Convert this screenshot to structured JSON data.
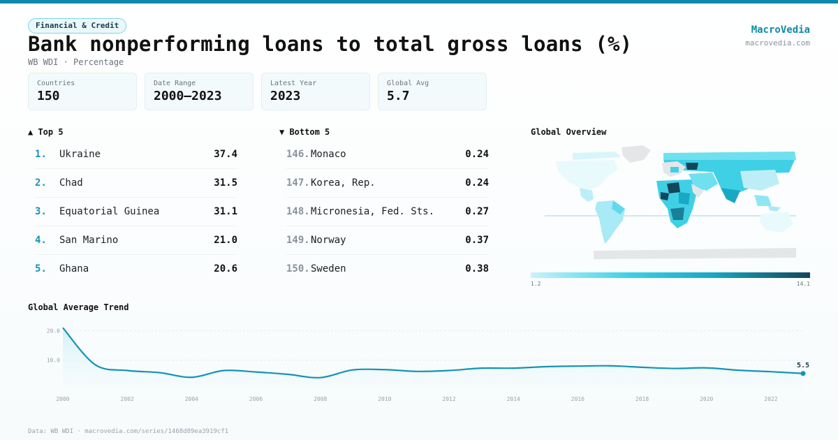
{
  "header": {
    "category_badge": "Financial & Credit",
    "title": "Bank nonperforming loans to total gross loans (%)",
    "subtitle": "WB WDI · Percentage",
    "brand": "MacroVedia",
    "brand_url": "macrovedia.com"
  },
  "stats": [
    {
      "label": "Countries",
      "value": "150"
    },
    {
      "label": "Date Range",
      "value": "2000–2023"
    },
    {
      "label": "Latest Year",
      "value": "2023"
    },
    {
      "label": "Global Avg",
      "value": "5.7"
    }
  ],
  "top5": {
    "heading": "▲ Top 5",
    "rows": [
      {
        "rank": "1.",
        "name": "Ukraine",
        "value": "37.4"
      },
      {
        "rank": "2.",
        "name": "Chad",
        "value": "31.5"
      },
      {
        "rank": "3.",
        "name": "Equatorial Guinea",
        "value": "31.1"
      },
      {
        "rank": "4.",
        "name": "San Marino",
        "value": "21.0"
      },
      {
        "rank": "5.",
        "name": "Ghana",
        "value": "20.6"
      }
    ]
  },
  "bottom5": {
    "heading": "▼ Bottom 5",
    "rows": [
      {
        "rank": "146.",
        "name": "Monaco",
        "value": "0.24"
      },
      {
        "rank": "147.",
        "name": "Korea, Rep.",
        "value": "0.24"
      },
      {
        "rank": "148.",
        "name": "Micronesia, Fed. Sts.",
        "value": "0.27"
      },
      {
        "rank": "149.",
        "name": "Norway",
        "value": "0.37"
      },
      {
        "rank": "150.",
        "name": "Sweden",
        "value": "0.38"
      }
    ]
  },
  "map": {
    "heading": "Global Overview",
    "legend_min": "1.2",
    "legend_max": "14.1",
    "colors": {
      "low": "#c9f3fb",
      "mid": "#3fd0e6",
      "high": "#19a8c4",
      "max": "#13465a",
      "nodata": "#e4e6e8"
    }
  },
  "trend": {
    "heading": "Global Average Trend",
    "last_label": "5.5",
    "color": "#1594b4"
  },
  "chart_data": {
    "type": "area",
    "title": "Global Average Trend",
    "x": [
      2000,
      2001,
      2002,
      2003,
      2004,
      2005,
      2006,
      2007,
      2008,
      2009,
      2010,
      2011,
      2012,
      2013,
      2014,
      2015,
      2016,
      2017,
      2018,
      2019,
      2020,
      2021,
      2022,
      2023
    ],
    "series": [
      {
        "values": [
          21.0,
          8.5,
          6.5,
          5.8,
          4.2,
          6.5,
          6.0,
          5.2,
          4.1,
          6.7,
          6.8,
          6.2,
          6.5,
          7.3,
          7.3,
          7.8,
          8.0,
          8.1,
          7.6,
          7.2,
          7.4,
          6.6,
          6.1,
          5.5
        ]
      }
    ],
    "xticks": [
      "2000",
      "2002",
      "2004",
      "2006",
      "2008",
      "2010",
      "2012",
      "2014",
      "2016",
      "2018",
      "2020",
      "2022"
    ],
    "yticks": [
      "10.0",
      "20.0"
    ],
    "ylim": [
      0,
      22
    ],
    "grid": true
  },
  "footer": "Data: WB WDI · macrovedia.com/series/1468d89ea3919cf1"
}
